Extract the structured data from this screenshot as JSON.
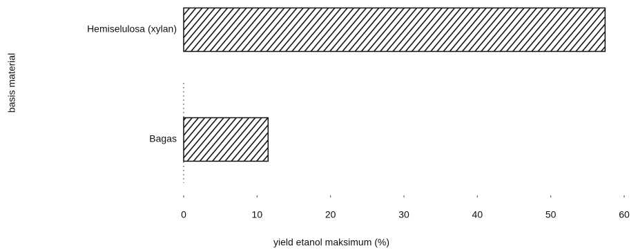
{
  "chart_data": {
    "type": "barh",
    "categories": [
      "Hemiselulosa (xylan)",
      "Bagas"
    ],
    "values": [
      57.4,
      11.5
    ],
    "color": "#111111",
    "hatch": true,
    "xlabel": "yield etanol maksimum (%)",
    "ylabel": "basis material",
    "xlim": [
      0,
      60
    ],
    "xticks": [
      0,
      10,
      20,
      30,
      40,
      50,
      60
    ]
  }
}
